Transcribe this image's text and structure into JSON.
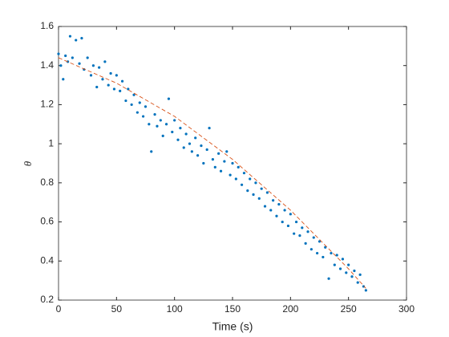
{
  "chart_data": {
    "type": "scatter",
    "x_label": "Time (s)",
    "y_label": "θ",
    "xlim": [
      0,
      300
    ],
    "ylim": [
      0.2,
      1.6
    ],
    "xticks": [
      0,
      50,
      100,
      150,
      200,
      250,
      300
    ],
    "yticks": [
      0.2,
      0.4,
      0.6,
      0.8,
      1,
      1.2,
      1.4,
      1.6
    ],
    "grid": false,
    "series": [
      {
        "style": "markers",
        "color": "#0072bd",
        "x": [
          0,
          2,
          4,
          6,
          8,
          10,
          12,
          15,
          18,
          20,
          22,
          25,
          28,
          30,
          33,
          35,
          38,
          40,
          43,
          45,
          48,
          50,
          53,
          55,
          58,
          60,
          63,
          65,
          68,
          70,
          73,
          75,
          78,
          80,
          83,
          85,
          88,
          90,
          93,
          95,
          98,
          100,
          103,
          105,
          108,
          110,
          113,
          115,
          118,
          120,
          123,
          125,
          128,
          130,
          133,
          135,
          138,
          140,
          143,
          145,
          148,
          150,
          153,
          155,
          158,
          160,
          163,
          165,
          168,
          170,
          173,
          175,
          178,
          180,
          183,
          185,
          188,
          190,
          193,
          195,
          198,
          200,
          203,
          205,
          208,
          210,
          213,
          215,
          218,
          220,
          223,
          225,
          228,
          230,
          233,
          235,
          238,
          240,
          243,
          245,
          248,
          250,
          253,
          255,
          258,
          260,
          263,
          265
        ],
        "values": [
          1.46,
          1.4,
          1.33,
          1.45,
          1.42,
          1.55,
          1.44,
          1.53,
          1.41,
          1.54,
          1.38,
          1.44,
          1.35,
          1.4,
          1.29,
          1.39,
          1.33,
          1.42,
          1.3,
          1.36,
          1.28,
          1.35,
          1.27,
          1.32,
          1.22,
          1.28,
          1.2,
          1.25,
          1.16,
          1.21,
          1.14,
          1.19,
          1.1,
          0.96,
          1.15,
          1.09,
          1.12,
          1.04,
          1.1,
          1.23,
          1.06,
          1.12,
          1.02,
          1.08,
          0.98,
          1.05,
          1.0,
          0.96,
          1.03,
          0.94,
          0.99,
          0.9,
          0.97,
          1.08,
          0.92,
          0.88,
          0.95,
          0.86,
          0.91,
          0.96,
          0.84,
          0.9,
          0.82,
          0.88,
          0.79,
          0.85,
          0.76,
          0.82,
          0.74,
          0.8,
          0.72,
          0.77,
          0.68,
          0.75,
          0.66,
          0.71,
          0.63,
          0.69,
          0.6,
          0.66,
          0.58,
          0.64,
          0.54,
          0.6,
          0.53,
          0.57,
          0.49,
          0.55,
          0.46,
          0.52,
          0.44,
          0.5,
          0.42,
          0.47,
          0.31,
          0.44,
          0.38,
          0.43,
          0.36,
          0.41,
          0.34,
          0.38,
          0.32,
          0.35,
          0.29,
          0.33,
          0.27,
          0.25
        ]
      },
      {
        "style": "dashed",
        "color": "#d95319",
        "x": [
          0,
          50,
          100,
          150,
          200,
          250,
          265
        ],
        "values": [
          1.44,
          1.31,
          1.14,
          0.92,
          0.66,
          0.36,
          0.26
        ]
      }
    ]
  }
}
